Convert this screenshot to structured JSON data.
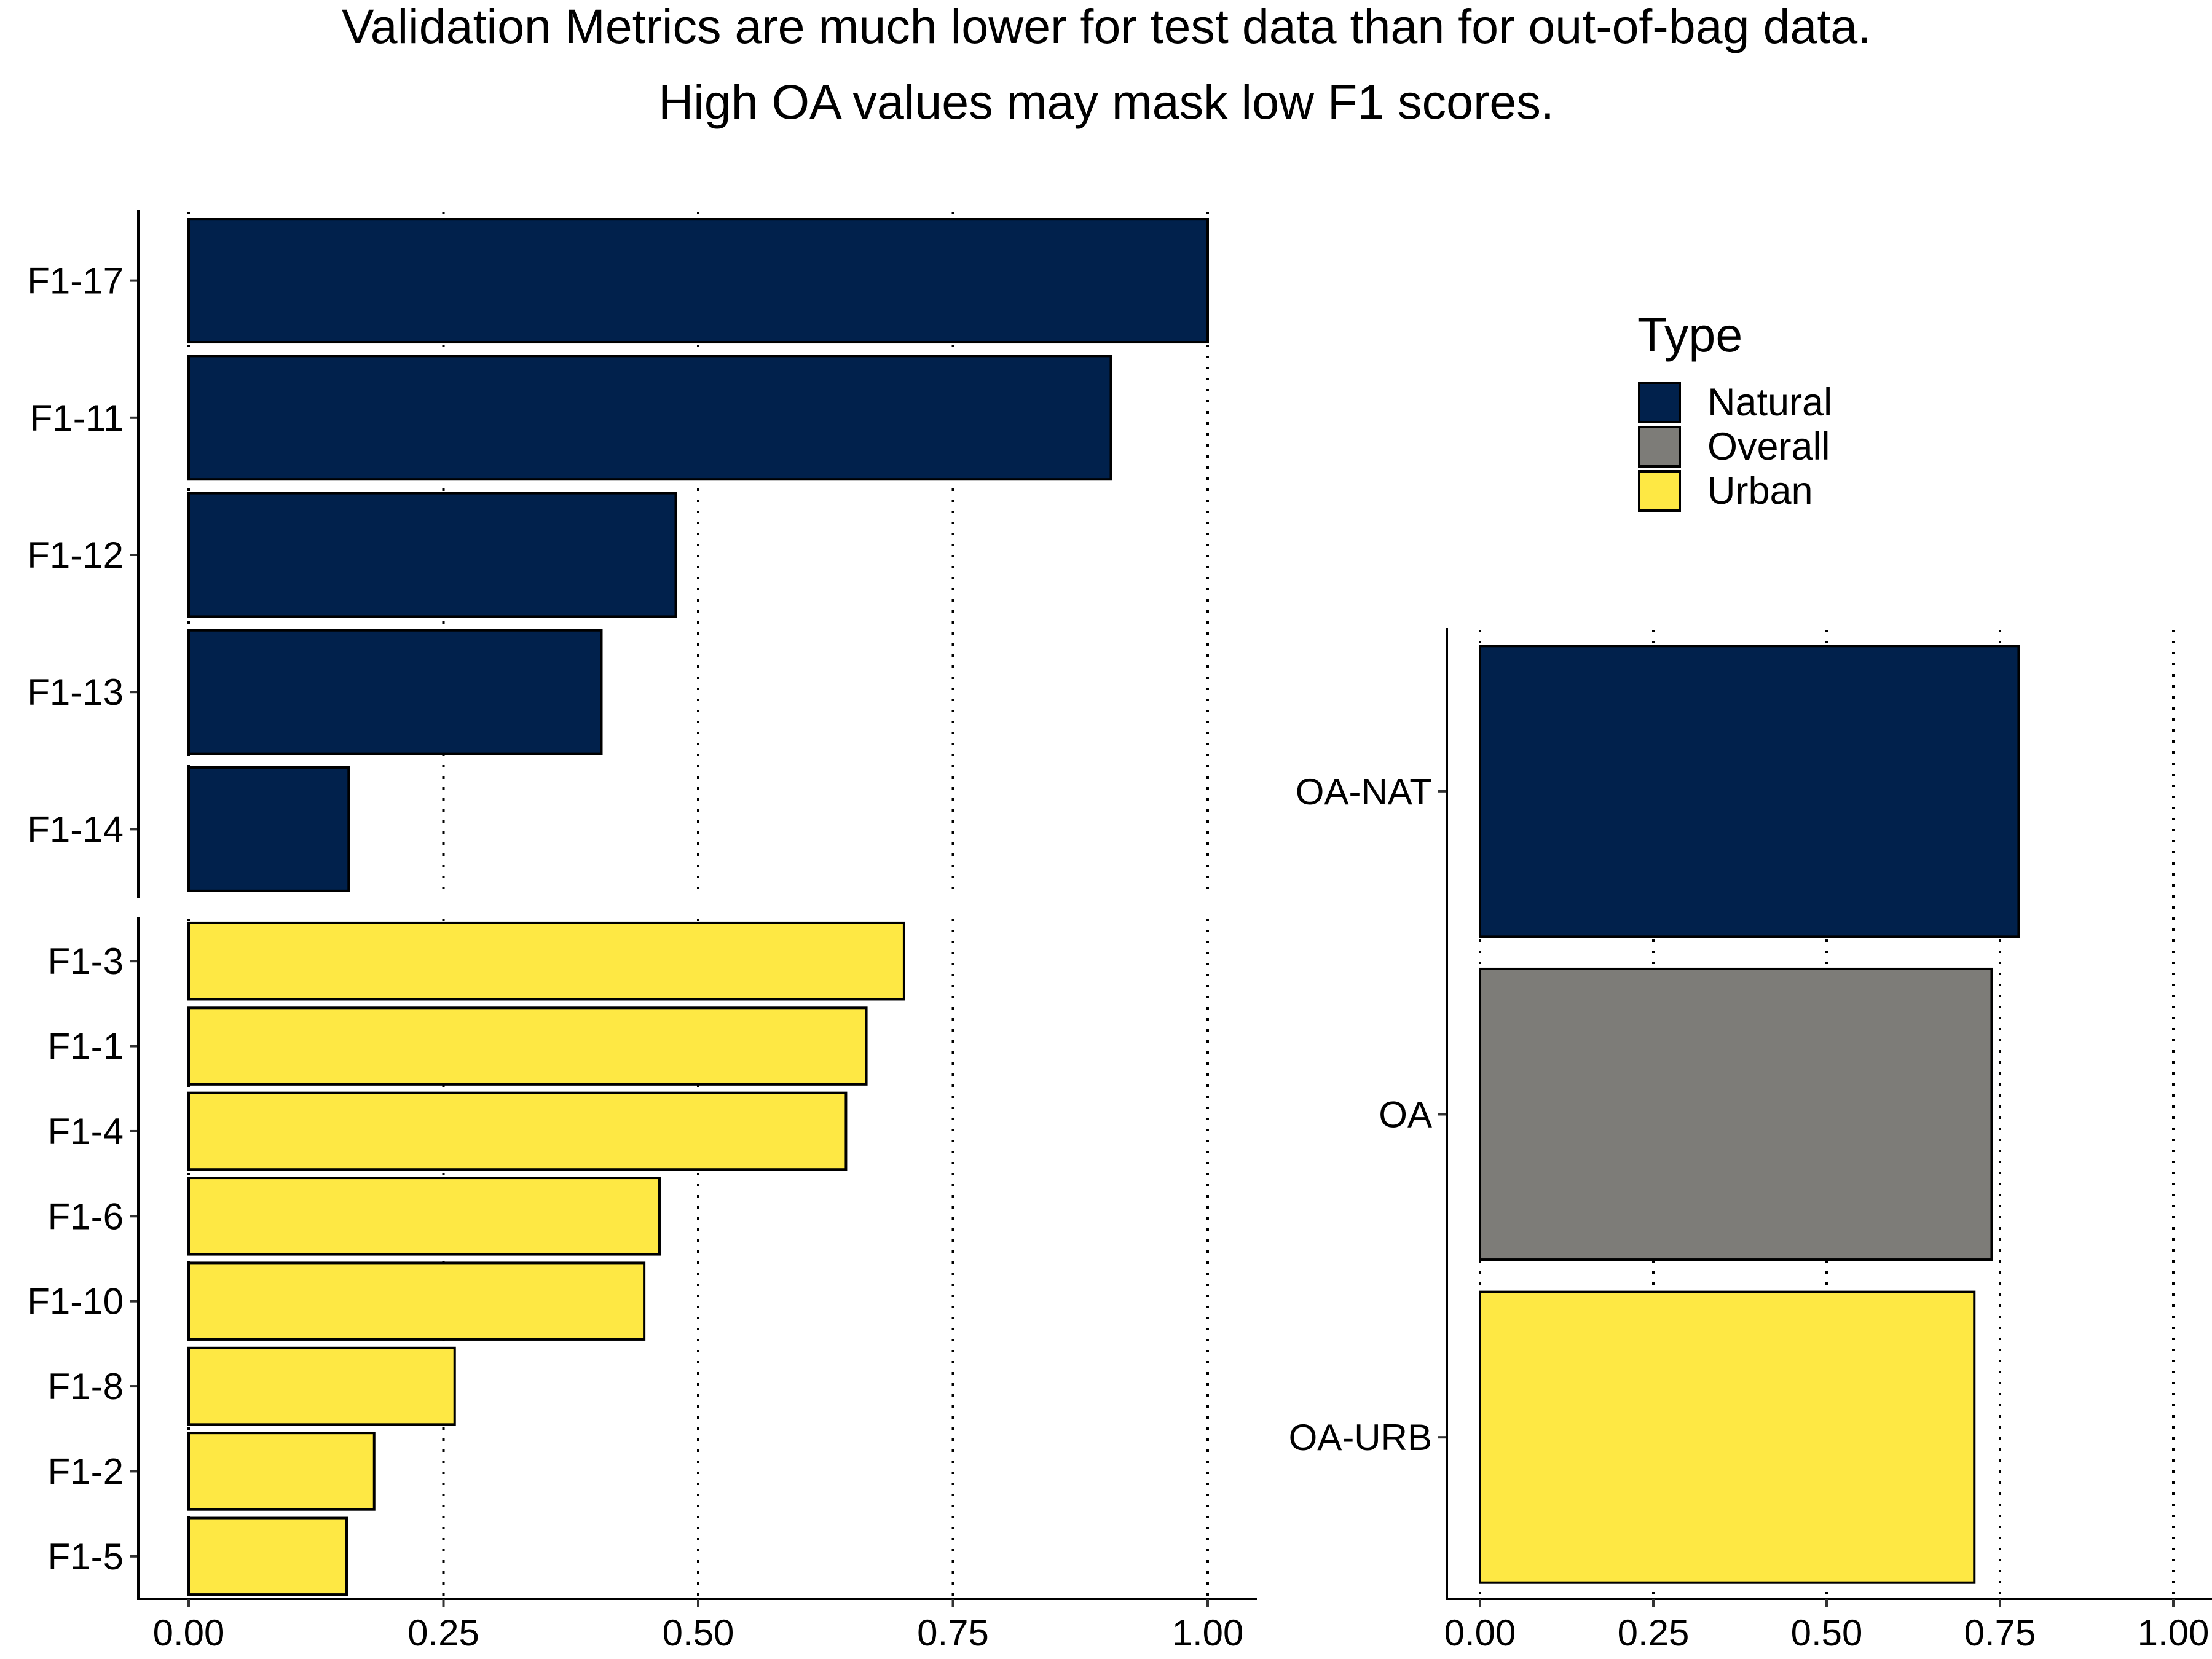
{
  "chart_data": {
    "type": "bar",
    "orientation": "horizontal",
    "title": [
      "Validation Metrics are much lower for test data than for out-of-bag data.",
      "High OA values may mask low F1 scores."
    ],
    "colors": {
      "Natural": "#01214c",
      "Overall": "#7d7c78",
      "Urban": "#fee844"
    },
    "legend": {
      "title": "Type",
      "position": "top-right",
      "items": [
        "Natural",
        "Overall",
        "Urban"
      ]
    },
    "grid": "vertical dotted",
    "panels": [
      {
        "id": "f1-natural",
        "categories": [
          "F1-17",
          "F1-11",
          "F1-12",
          "F1-13",
          "F1-14"
        ],
        "values": [
          1.0,
          0.905,
          0.478,
          0.405,
          0.157
        ],
        "type_of_bar": "Natural",
        "xlim": [
          0,
          1
        ],
        "x_ticks": []
      },
      {
        "id": "f1-urban",
        "categories": [
          "F1-3",
          "F1-1",
          "F1-4",
          "F1-6",
          "F1-10",
          "F1-8",
          "F1-2",
          "F1-5"
        ],
        "values": [
          0.702,
          0.665,
          0.645,
          0.462,
          0.447,
          0.261,
          0.182,
          0.155
        ],
        "type_of_bar": "Urban",
        "xlim": [
          0,
          1
        ],
        "x_ticks": [
          "0.00",
          "0.25",
          "0.50",
          "0.75",
          "1.00"
        ]
      },
      {
        "id": "oa",
        "categories": [
          "OA-NAT",
          "OA",
          "OA-URB"
        ],
        "values": [
          0.777,
          0.738,
          0.713
        ],
        "types": [
          "Natural",
          "Overall",
          "Urban"
        ],
        "xlim": [
          0,
          1
        ],
        "x_ticks": [
          "0.00",
          "0.25",
          "0.50",
          "0.75",
          "1.00"
        ]
      }
    ]
  }
}
